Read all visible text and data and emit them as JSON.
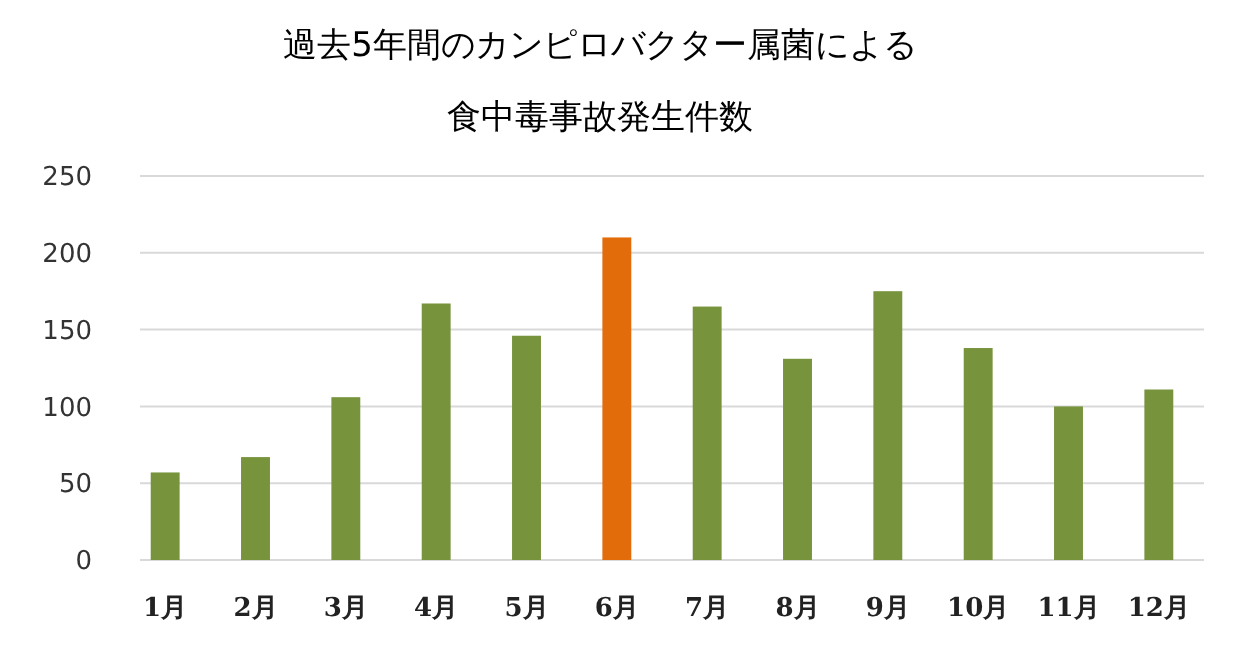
{
  "chart_data": {
    "type": "bar",
    "title": "過去5年間のカンピロバクター属菌による",
    "subtitle": "食中毒事故発生件数",
    "categories": [
      "1月",
      "2月",
      "3月",
      "4月",
      "5月",
      "6月",
      "7月",
      "8月",
      "9月",
      "10月",
      "11月",
      "12月"
    ],
    "values": [
      57,
      67,
      106,
      167,
      146,
      210,
      165,
      131,
      175,
      138,
      100,
      111
    ],
    "colors": [
      "#77933c",
      "#77933c",
      "#77933c",
      "#77933c",
      "#77933c",
      "#e36c0a",
      "#77933c",
      "#77933c",
      "#77933c",
      "#77933c",
      "#77933c",
      "#77933c"
    ],
    "ylim": [
      0,
      250
    ],
    "yticks": [
      0,
      50,
      100,
      150,
      200,
      250
    ],
    "grid": "y"
  }
}
